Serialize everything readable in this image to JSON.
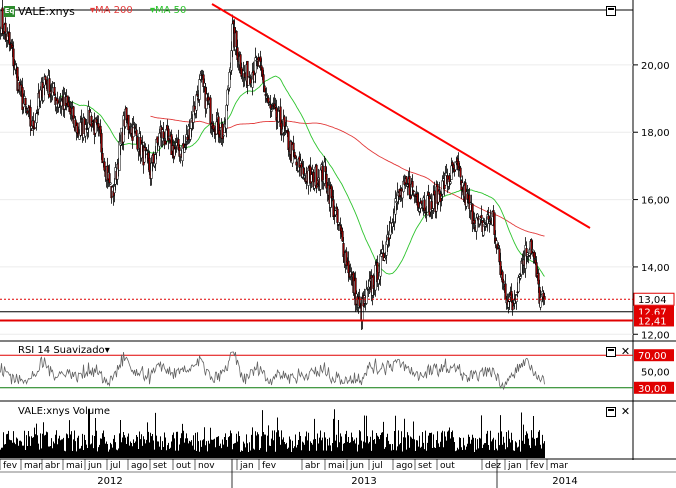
{
  "instrument": {
    "badge": "Eq",
    "symbol": "VALE:xnys"
  },
  "indicators": [
    {
      "name": "MA 200",
      "color": "#e23b3b"
    },
    {
      "name": "MA 50",
      "color": "#2ec42e"
    }
  ],
  "price_axis": {
    "ticks": [
      "20,00",
      "18,00",
      "16,00",
      "14,00",
      "12,00"
    ],
    "markers": [
      {
        "label": "13,04",
        "color": "#e00000",
        "style": "dotted-box"
      },
      {
        "label": "12,67",
        "color": "#e00000",
        "style": "filled"
      },
      {
        "label": "12,41",
        "color": "#e00000",
        "style": "filled"
      }
    ]
  },
  "rsi_panel": {
    "title": "RSI 14 Suavizado",
    "ticks": [
      "70,00",
      "50,00",
      "30,00"
    ]
  },
  "volume_panel": {
    "title": "VALE:xnys Volume"
  },
  "time_axis": {
    "months": [
      "fev",
      "mar",
      "abr",
      "mai",
      "jun",
      "jul",
      "ago",
      "set",
      "out",
      "nov",
      "jan",
      "fev",
      "abr",
      "mai",
      "jun",
      "jul",
      "ago",
      "set",
      "out",
      "dez",
      "jan",
      "fev",
      "mar"
    ],
    "years": [
      "2012",
      "2013",
      "2014"
    ]
  },
  "chart_data": {
    "type": "candlestick",
    "title": "",
    "series": [
      {
        "name": "VALE:xnys"
      },
      {
        "name": "MA 200"
      },
      {
        "name": "MA 50"
      }
    ],
    "ylim": [
      11.8,
      21.6
    ],
    "horizontal_levels": [
      13.04,
      12.67,
      12.41
    ],
    "trendline": {
      "from": [
        2012.95,
        21.6
      ],
      "to": [
        2014.05,
        14.7
      ]
    },
    "rsi": {
      "overbought": 70,
      "oversold": 30
    }
  }
}
